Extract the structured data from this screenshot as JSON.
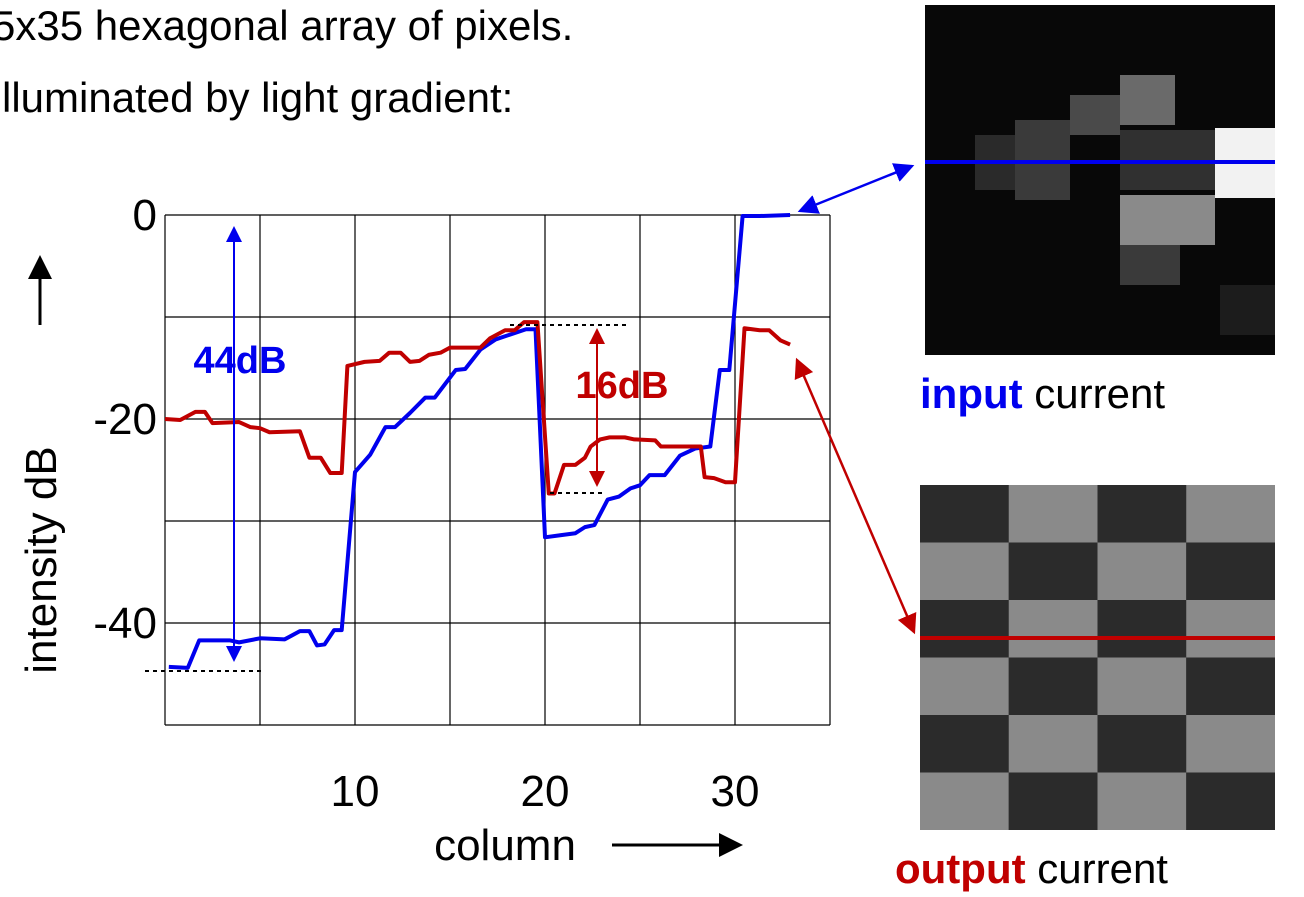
{
  "header": {
    "line1": "5x35 hexagonal array of pixels.",
    "line2": "lluminated by light gradient:"
  },
  "chart_data": {
    "type": "line",
    "y_label": "intensity dB",
    "x_label": "column",
    "xlim": [
      0,
      35
    ],
    "xticks": [
      10,
      20,
      30
    ],
    "xgrid": [
      0,
      5,
      10,
      15,
      20,
      25,
      30,
      35
    ],
    "ylim": [
      -50,
      0
    ],
    "yticks": [
      0,
      -20,
      -40
    ],
    "ygrid": [
      0,
      -10,
      -20,
      -30,
      -40,
      -50
    ],
    "grid": true,
    "series": [
      {
        "color": "#0000ee",
        "x": [
          0.2,
          1.2,
          1.8,
          3.4,
          3.9,
          5,
          6.3,
          7.1,
          7.6,
          8,
          8.4,
          8.9,
          9.3,
          10,
          10.8,
          11.6,
          12.1,
          12.9,
          13.7,
          14.2,
          15.3,
          15.8,
          16.6,
          17.4,
          18.2,
          19,
          19.5,
          20,
          20.8,
          21.6,
          22.1,
          22.6,
          23.3,
          23.9,
          24.5,
          25,
          25.5,
          26.3,
          27.1,
          27.9,
          28.7,
          29.2,
          29.7,
          30.4,
          31.3,
          32.9
        ],
        "values": [
          -44.3,
          -44.4,
          -41.7,
          -41.7,
          -41.9,
          -41.5,
          -41.6,
          -40.8,
          -40.8,
          -42.2,
          -42.1,
          -40.7,
          -40.7,
          -25.2,
          -23.5,
          -20.8,
          -20.8,
          -19.4,
          -17.9,
          -17.9,
          -15.2,
          -15.1,
          -13.2,
          -12.2,
          -11.7,
          -11.2,
          -11.2,
          -31.6,
          -31.4,
          -31.2,
          -30.6,
          -30.4,
          -27.9,
          -27.6,
          -26.8,
          -26.5,
          -25.5,
          -25.5,
          -23.6,
          -22.9,
          -22.7,
          -15.2,
          -15.2,
          -0.1,
          -0.1,
          0
        ]
      },
      {
        "color": "#c00000",
        "x": [
          0,
          0.8,
          1.6,
          2.1,
          2.5,
          3.9,
          4.5,
          5,
          5.5,
          7.1,
          7.6,
          8.2,
          8.7,
          9.3,
          9.6,
          10.5,
          11.3,
          11.8,
          12.4,
          12.9,
          13.4,
          13.9,
          14.5,
          15,
          16.6,
          17.1,
          17.9,
          18.4,
          18.9,
          19.6,
          20.2,
          20.5,
          21,
          21.6,
          22.1,
          22.4,
          22.9,
          23.4,
          24.2,
          24.7,
          25.8,
          26.1,
          27.1,
          28.2,
          28.4,
          28.9,
          29.5,
          30,
          30.5,
          31.3,
          31.8,
          32.4,
          32.9
        ],
        "values": [
          -20,
          -20.1,
          -19.3,
          -19.3,
          -20.4,
          -20.3,
          -20.8,
          -20.9,
          -21.3,
          -21.2,
          -23.8,
          -23.8,
          -25.3,
          -25.3,
          -14.8,
          -14.4,
          -14.3,
          -13.5,
          -13.5,
          -14.4,
          -14.3,
          -13.7,
          -13.5,
          -13,
          -13,
          -12.1,
          -11.3,
          -11.3,
          -10.5,
          -10.5,
          -27.3,
          -27.3,
          -24.5,
          -24.5,
          -23.8,
          -22.7,
          -22,
          -21.8,
          -21.8,
          -22,
          -22.1,
          -22.7,
          -22.7,
          -22.7,
          -25.7,
          -25.8,
          -26.2,
          -26.2,
          -11.1,
          -11.3,
          -11.3,
          -12.3,
          -12.7
        ]
      }
    ],
    "annotations": [
      {
        "text": "44dB",
        "color": "#0000ee"
      },
      {
        "text": "16dB",
        "color": "#c00000"
      }
    ]
  },
  "images": [
    {
      "bold": "input",
      "rest": " current",
      "color": "#0000ee"
    },
    {
      "bold": "output",
      "rest": " current",
      "color": "#c00000"
    }
  ]
}
